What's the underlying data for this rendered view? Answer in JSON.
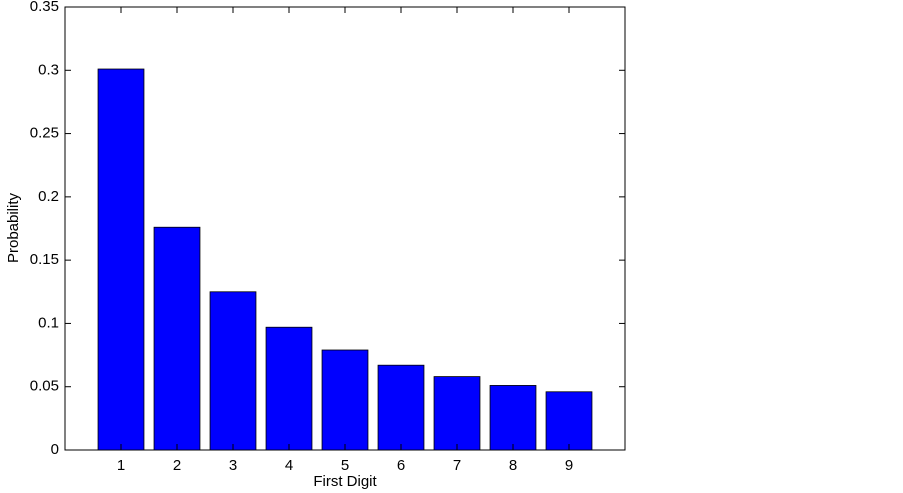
{
  "chart_data": {
    "type": "bar",
    "x_label": "First Digit",
    "y_label": "Probability",
    "x": [
      1,
      2,
      3,
      4,
      5,
      6,
      7,
      8,
      9
    ],
    "values": [
      0.301,
      0.176,
      0.125,
      0.097,
      0.079,
      0.067,
      0.058,
      0.051,
      0.046
    ],
    "color": "#0000ff",
    "xlim": [
      0,
      10
    ],
    "xticks": [
      1,
      2,
      3,
      4,
      5,
      6,
      7,
      8,
      9
    ],
    "ylim": [
      0,
      0.35
    ],
    "yticks": [
      0,
      0.05,
      0.1,
      0.15,
      0.2,
      0.25,
      0.3,
      0.35
    ],
    "grid": false
  }
}
